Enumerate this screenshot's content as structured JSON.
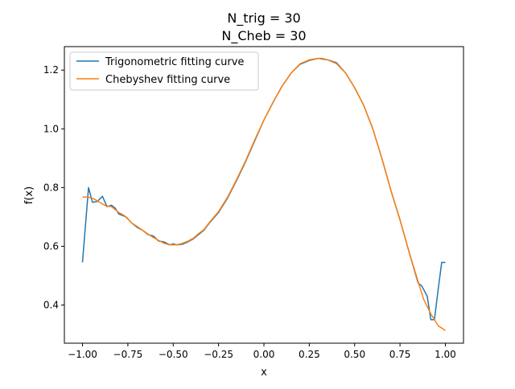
{
  "chart_data": {
    "type": "line",
    "title_line1": "N_trig = 30",
    "title_line2": "N_Cheb = 30",
    "xlabel": "x",
    "ylabel": "f(x)",
    "xlim": [
      -1.1,
      1.1
    ],
    "ylim": [
      0.27,
      1.28
    ],
    "x_ticks": [
      -1.0,
      -0.75,
      -0.5,
      -0.25,
      0.0,
      0.25,
      0.5,
      0.75,
      1.0
    ],
    "x_tick_labels": [
      "−1.00",
      "−0.75",
      "−0.50",
      "−0.25",
      "0.00",
      "0.25",
      "0.50",
      "0.75",
      "1.00"
    ],
    "y_ticks": [
      0.4,
      0.6,
      0.8,
      1.0,
      1.2
    ],
    "y_tick_labels": [
      "0.4",
      "0.6",
      "0.8",
      "1.0",
      "1.2"
    ],
    "grid": false,
    "legend_position": "top-left",
    "series": [
      {
        "name": "Trigonometric fitting curve",
        "color": "#1f77b4",
        "x": [
          -1.0,
          -0.967,
          -0.945,
          -0.92,
          -0.89,
          -0.865,
          -0.84,
          -0.82,
          -0.8,
          -0.78,
          -0.76,
          -0.73,
          -0.7,
          -0.67,
          -0.64,
          -0.61,
          -0.58,
          -0.55,
          -0.52,
          -0.5,
          -0.48,
          -0.45,
          -0.42,
          -0.39,
          -0.36,
          -0.33,
          -0.3,
          -0.25,
          -0.2,
          -0.15,
          -0.1,
          -0.05,
          0.0,
          0.05,
          0.1,
          0.15,
          0.2,
          0.25,
          0.3,
          0.33,
          0.35,
          0.4,
          0.45,
          0.5,
          0.55,
          0.6,
          0.65,
          0.7,
          0.75,
          0.8,
          0.85,
          0.87,
          0.9,
          0.92,
          0.94,
          0.96,
          0.98,
          1.0
        ],
        "y": [
          0.545,
          0.8,
          0.75,
          0.752,
          0.77,
          0.735,
          0.74,
          0.73,
          0.71,
          0.705,
          0.7,
          0.68,
          0.665,
          0.655,
          0.64,
          0.635,
          0.618,
          0.615,
          0.605,
          0.608,
          0.605,
          0.607,
          0.615,
          0.625,
          0.64,
          0.655,
          0.68,
          0.715,
          0.765,
          0.825,
          0.89,
          0.96,
          1.03,
          1.09,
          1.145,
          1.19,
          1.22,
          1.233,
          1.24,
          1.237,
          1.235,
          1.225,
          1.19,
          1.14,
          1.08,
          1.0,
          0.9,
          0.79,
          0.69,
          0.58,
          0.475,
          0.465,
          0.43,
          0.35,
          0.35,
          0.45,
          0.545,
          0.545
        ]
      },
      {
        "name": "Chebyshev fitting curve",
        "color": "#ff7f0e",
        "x": [
          -1.0,
          -0.97,
          -0.94,
          -0.9,
          -0.87,
          -0.84,
          -0.8,
          -0.77,
          -0.73,
          -0.7,
          -0.67,
          -0.64,
          -0.61,
          -0.58,
          -0.55,
          -0.52,
          -0.5,
          -0.48,
          -0.45,
          -0.42,
          -0.39,
          -0.36,
          -0.33,
          -0.3,
          -0.25,
          -0.2,
          -0.15,
          -0.1,
          -0.05,
          0.0,
          0.05,
          0.1,
          0.15,
          0.2,
          0.25,
          0.3,
          0.32,
          0.35,
          0.4,
          0.45,
          0.5,
          0.55,
          0.6,
          0.65,
          0.7,
          0.75,
          0.8,
          0.85,
          0.88,
          0.92,
          0.96,
          1.0
        ],
        "y": [
          0.768,
          0.768,
          0.762,
          0.748,
          0.737,
          0.735,
          0.715,
          0.705,
          0.68,
          0.668,
          0.655,
          0.642,
          0.63,
          0.62,
          0.61,
          0.605,
          0.605,
          0.605,
          0.61,
          0.617,
          0.627,
          0.643,
          0.657,
          0.682,
          0.718,
          0.768,
          0.828,
          0.893,
          0.963,
          1.03,
          1.09,
          1.145,
          1.19,
          1.222,
          1.235,
          1.24,
          1.24,
          1.235,
          1.222,
          1.19,
          1.14,
          1.08,
          1.0,
          0.9,
          0.79,
          0.69,
          0.58,
          0.48,
          0.42,
          0.37,
          0.33,
          0.313
        ]
      }
    ]
  }
}
